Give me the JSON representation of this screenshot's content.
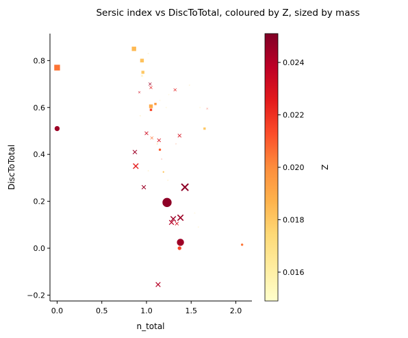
{
  "chart_data": {
    "type": "scatter",
    "title": "Sersic index vs DiscToTotal, coloured by Z, sized by mass",
    "xlabel": "n_total",
    "ylabel": "DiscToTotal",
    "xlim": [
      -0.08,
      2.18
    ],
    "ylim": [
      -0.225,
      0.915
    ],
    "x_ticks": [
      0.0,
      0.5,
      1.0,
      1.5,
      2.0
    ],
    "x_tick_labels": [
      "0.0",
      "0.5",
      "1.0",
      "1.5",
      "2.0"
    ],
    "y_ticks": [
      -0.2,
      0.0,
      0.2,
      0.4,
      0.6,
      0.8
    ],
    "y_tick_labels": [
      "−0.2",
      "0.0",
      "0.2",
      "0.4",
      "0.6",
      "0.8"
    ],
    "colorbar": {
      "label": "Z",
      "range": [
        0.0149,
        0.0251
      ],
      "ticks": [
        0.016,
        0.018,
        0.02,
        0.022,
        0.024
      ],
      "tick_labels": [
        "0.016",
        "0.018",
        "0.020",
        "0.022",
        "0.024"
      ],
      "colormap": "YlOrRd"
    },
    "grid": false,
    "points": [
      {
        "x": 0.0,
        "y": 0.77,
        "z": 0.0205,
        "shape": "square",
        "size": 9
      },
      {
        "x": 0.0,
        "y": 0.51,
        "z": 0.0245,
        "shape": "circle",
        "size": 8
      },
      {
        "x": 0.86,
        "y": 0.85,
        "z": 0.0185,
        "shape": "square",
        "size": 7
      },
      {
        "x": 0.95,
        "y": 0.8,
        "z": 0.0182,
        "shape": "square",
        "size": 6
      },
      {
        "x": 1.02,
        "y": 0.83,
        "z": 0.0175,
        "shape": "x",
        "size": 2
      },
      {
        "x": 0.96,
        "y": 0.75,
        "z": 0.018,
        "shape": "square",
        "size": 5
      },
      {
        "x": 0.95,
        "y": 0.735,
        "z": 0.0168,
        "shape": "x",
        "size": 4
      },
      {
        "x": 1.04,
        "y": 0.7,
        "z": 0.0245,
        "shape": "x",
        "size": 5
      },
      {
        "x": 1.05,
        "y": 0.685,
        "z": 0.0225,
        "shape": "x",
        "size": 5
      },
      {
        "x": 0.92,
        "y": 0.665,
        "z": 0.0232,
        "shape": "x",
        "size": 4
      },
      {
        "x": 1.32,
        "y": 0.675,
        "z": 0.0225,
        "shape": "x",
        "size": 5
      },
      {
        "x": 1.48,
        "y": 0.695,
        "z": 0.017,
        "shape": "x",
        "size": 2
      },
      {
        "x": 1.25,
        "y": 0.655,
        "z": 0.016,
        "shape": "x",
        "size": 2
      },
      {
        "x": 1.1,
        "y": 0.615,
        "z": 0.0195,
        "shape": "square",
        "size": 4
      },
      {
        "x": 1.15,
        "y": 0.63,
        "z": 0.0165,
        "shape": "x",
        "size": 2
      },
      {
        "x": 1.05,
        "y": 0.605,
        "z": 0.019,
        "shape": "square",
        "size": 6
      },
      {
        "x": 1.05,
        "y": 0.59,
        "z": 0.0215,
        "shape": "square",
        "size": 4
      },
      {
        "x": 1.22,
        "y": 0.6,
        "z": 0.016,
        "shape": "x",
        "size": 2
      },
      {
        "x": 1.6,
        "y": 0.6,
        "z": 0.016,
        "shape": "x",
        "size": 2
      },
      {
        "x": 1.68,
        "y": 0.595,
        "z": 0.0215,
        "shape": "x",
        "size": 3
      },
      {
        "x": 0.93,
        "y": 0.565,
        "z": 0.017,
        "shape": "x",
        "size": 2
      },
      {
        "x": 1.65,
        "y": 0.51,
        "z": 0.018,
        "shape": "square",
        "size": 4
      },
      {
        "x": 1.0,
        "y": 0.49,
        "z": 0.0232,
        "shape": "x",
        "size": 6
      },
      {
        "x": 1.37,
        "y": 0.48,
        "z": 0.023,
        "shape": "x",
        "size": 6
      },
      {
        "x": 1.06,
        "y": 0.47,
        "z": 0.0205,
        "shape": "x",
        "size": 5
      },
      {
        "x": 1.14,
        "y": 0.46,
        "z": 0.023,
        "shape": "x",
        "size": 6
      },
      {
        "x": 1.12,
        "y": 0.445,
        "z": 0.0175,
        "shape": "x",
        "size": 3
      },
      {
        "x": 1.33,
        "y": 0.445,
        "z": 0.0205,
        "shape": "x",
        "size": 2
      },
      {
        "x": 1.15,
        "y": 0.42,
        "z": 0.021,
        "shape": "circle",
        "size": 4
      },
      {
        "x": 0.87,
        "y": 0.41,
        "z": 0.0245,
        "shape": "x",
        "size": 7
      },
      {
        "x": 1.17,
        "y": 0.38,
        "z": 0.0215,
        "shape": "x",
        "size": 2
      },
      {
        "x": 0.88,
        "y": 0.35,
        "z": 0.0225,
        "shape": "x",
        "size": 9
      },
      {
        "x": 1.02,
        "y": 0.33,
        "z": 0.0175,
        "shape": "x",
        "size": 2
      },
      {
        "x": 1.19,
        "y": 0.325,
        "z": 0.018,
        "shape": "circle",
        "size": 3
      },
      {
        "x": 1.24,
        "y": 0.29,
        "z": 0.0168,
        "shape": "x",
        "size": 2
      },
      {
        "x": 0.97,
        "y": 0.26,
        "z": 0.0245,
        "shape": "x",
        "size": 7
      },
      {
        "x": 1.43,
        "y": 0.26,
        "z": 0.0248,
        "shape": "x",
        "size": 12
      },
      {
        "x": 1.23,
        "y": 0.195,
        "z": 0.0248,
        "shape": "circle",
        "size": 14
      },
      {
        "x": 1.54,
        "y": 0.15,
        "z": 0.0168,
        "shape": "x",
        "size": 2
      },
      {
        "x": 1.3,
        "y": 0.125,
        "z": 0.0245,
        "shape": "x",
        "size": 9
      },
      {
        "x": 1.38,
        "y": 0.13,
        "z": 0.0245,
        "shape": "x",
        "size": 10
      },
      {
        "x": 1.28,
        "y": 0.11,
        "z": 0.024,
        "shape": "x",
        "size": 8
      },
      {
        "x": 1.34,
        "y": 0.105,
        "z": 0.023,
        "shape": "x",
        "size": 6
      },
      {
        "x": 1.58,
        "y": 0.09,
        "z": 0.0162,
        "shape": "x",
        "size": 2
      },
      {
        "x": 1.38,
        "y": 0.025,
        "z": 0.0245,
        "shape": "circle",
        "size": 11
      },
      {
        "x": 1.37,
        "y": 0.0,
        "z": 0.0215,
        "shape": "circle",
        "size": 6
      },
      {
        "x": 2.07,
        "y": 0.015,
        "z": 0.0205,
        "shape": "circle",
        "size": 4
      },
      {
        "x": 1.13,
        "y": -0.155,
        "z": 0.024,
        "shape": "x",
        "size": 8
      }
    ]
  }
}
